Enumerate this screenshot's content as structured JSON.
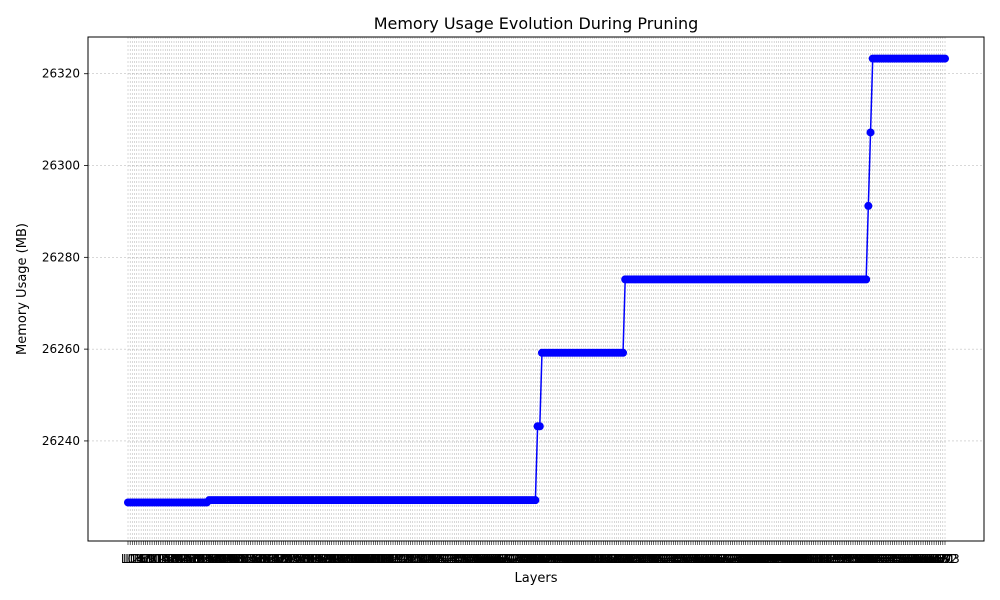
{
  "chart_data": {
    "type": "line",
    "title": "Memory Usage Evolution During Pruning",
    "xlabel": "Layers",
    "ylabel": "Memory Usage (MB)",
    "ylim": [
      26218.2,
      26328.0
    ],
    "yticks": [
      26240,
      26260,
      26280,
      26300,
      26320
    ],
    "grid": true,
    "x_tick_labels_overlapping": true,
    "x_tick_label_prefix": "L",
    "series": [
      {
        "color": "#0000ff",
        "marker": "circle",
        "segments": [
          {
            "count": 37,
            "value": 26226.6
          },
          {
            "count": 150,
            "value": 26227.1
          },
          {
            "count": 2,
            "value": 26243.2
          },
          {
            "count": 38,
            "value": 26259.2
          },
          {
            "count": 111,
            "value": 26275.2
          },
          {
            "count": 1,
            "value": 26291.2
          },
          {
            "count": 1,
            "value": 26307.2
          },
          {
            "count": 34,
            "value": 26323.3
          }
        ]
      }
    ]
  },
  "colors": {
    "line": "#0000ff",
    "grid": "#b0b0b0",
    "axes": "#000000"
  }
}
